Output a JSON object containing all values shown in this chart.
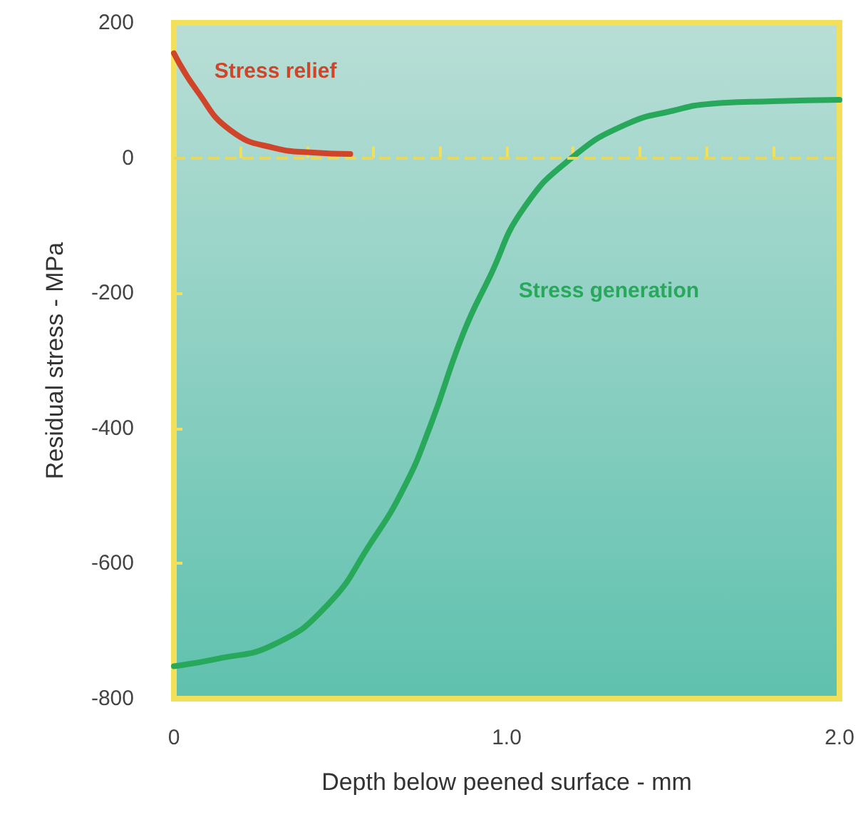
{
  "chart_data": {
    "type": "line",
    "xlabel": "Depth below peened surface - mm",
    "ylabel": "Residual stress - MPa",
    "xlim": [
      0,
      2
    ],
    "ylim": [
      -800,
      200
    ],
    "xticks": [
      {
        "value": 0,
        "label": "0"
      },
      {
        "value": 0.2,
        "label": null
      },
      {
        "value": 0.4,
        "label": null
      },
      {
        "value": 0.6,
        "label": null
      },
      {
        "value": 0.8,
        "label": null
      },
      {
        "value": 1,
        "label": "1.0"
      },
      {
        "value": 1.2,
        "label": null
      },
      {
        "value": 1.4,
        "label": null
      },
      {
        "value": 1.6,
        "label": null
      },
      {
        "value": 1.8,
        "label": null
      },
      {
        "value": 2,
        "label": "2.0"
      }
    ],
    "yticks": [
      -800,
      -600,
      -400,
      -200,
      0,
      200
    ],
    "grid": false,
    "legend": false,
    "marker": "none",
    "line_style": "solid",
    "ref_lines": [
      {
        "axis": "y",
        "value": 0,
        "color": "#e8d860",
        "line_style": "dashed"
      }
    ],
    "series": [
      {
        "name": "Stress relief",
        "color": "#d0452a",
        "x": [
          0,
          0.07,
          0.17,
          0.3,
          0.42,
          0.53
        ],
        "values": [
          155,
          99,
          41,
          15,
          8,
          6
        ]
      },
      {
        "name": "Stress generation",
        "color": "#28a85a",
        "x": [
          0,
          0.13,
          0.3,
          0.46,
          0.59,
          0.69,
          0.77,
          0.87,
          0.95,
          1.05,
          1.2,
          1.36,
          1.5,
          1.61,
          1.8,
          2.0
        ],
        "values": [
          -752,
          -741,
          -720,
          -662,
          -571,
          -489,
          -397,
          -259,
          -175,
          -75,
          2,
          50,
          70,
          80,
          84,
          86
        ]
      }
    ]
  }
}
